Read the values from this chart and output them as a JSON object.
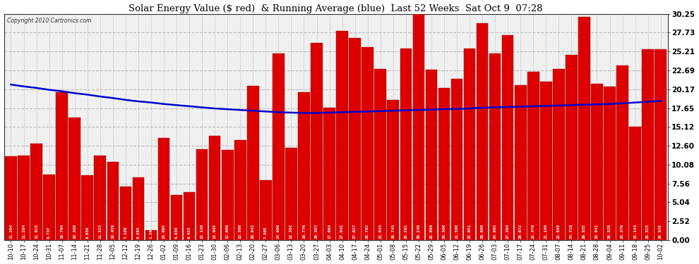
{
  "title": "Solar Energy Value ($ red)  & Running Average (blue)  Last 52 Weeks  Sat Oct 9  07:28",
  "copyright": "Copyright 2010 Cartronics.com",
  "bar_color": "#dd0000",
  "line_color": "#0000cc",
  "background_color": "#f0f0f0",
  "grid_color": "#bbbbbb",
  "ylim": [
    0,
    30.25
  ],
  "yticks": [
    0.0,
    2.52,
    5.04,
    7.56,
    10.08,
    12.6,
    15.12,
    17.65,
    20.17,
    22.69,
    25.21,
    27.73,
    30.25
  ],
  "categories": [
    "10-10",
    "10-17",
    "10-24",
    "10-31",
    "11-07",
    "11-14",
    "11-21",
    "11-28",
    "12-05",
    "12-12",
    "12-19",
    "12-26",
    "01-02",
    "01-09",
    "01-16",
    "01-23",
    "01-30",
    "02-06",
    "02-13",
    "02-20",
    "02-27",
    "03-06",
    "03-13",
    "03-20",
    "03-27",
    "04-03",
    "04-10",
    "04-17",
    "04-24",
    "05-01",
    "05-08",
    "05-15",
    "05-22",
    "05-29",
    "06-05",
    "06-12",
    "06-19",
    "06-26",
    "07-03",
    "07-10",
    "07-17",
    "07-24",
    "07-31",
    "08-07",
    "08-14",
    "08-21",
    "08-28",
    "09-04",
    "09-11",
    "09-18",
    "09-25",
    "10-02"
  ],
  "values": [
    11.204,
    11.284,
    12.915,
    8.737,
    19.794,
    16.368,
    8.658,
    11.323,
    10.459,
    7.189,
    8.383,
    1.364,
    13.662,
    6.03,
    6.433,
    12.13,
    13.965,
    12.08,
    13.39,
    20.643,
    7.995,
    24.906,
    12.382,
    19.776,
    26.367,
    17.664,
    27.942,
    27.027,
    25.782,
    22.844,
    18.743,
    25.582,
    30.249,
    22.8,
    20.3,
    21.56,
    25.651,
    29.0,
    24.993,
    27.394,
    20.672,
    22.47,
    21.18,
    22.858,
    24.719,
    29.835,
    20.941,
    20.528,
    23.376,
    15.144,
    25.525,
    25.525
  ],
  "running_avg": [
    20.8,
    20.55,
    20.35,
    20.1,
    19.9,
    19.65,
    19.45,
    19.2,
    19.0,
    18.75,
    18.55,
    18.4,
    18.2,
    18.05,
    17.9,
    17.75,
    17.6,
    17.5,
    17.4,
    17.3,
    17.2,
    17.1,
    17.05,
    17.0,
    17.0,
    17.05,
    17.1,
    17.15,
    17.2,
    17.25,
    17.3,
    17.35,
    17.4,
    17.45,
    17.5,
    17.55,
    17.6,
    17.7,
    17.75,
    17.8,
    17.85,
    17.9,
    17.95,
    18.0,
    18.05,
    18.1,
    18.15,
    18.2,
    18.3,
    18.4,
    18.5,
    18.6
  ]
}
